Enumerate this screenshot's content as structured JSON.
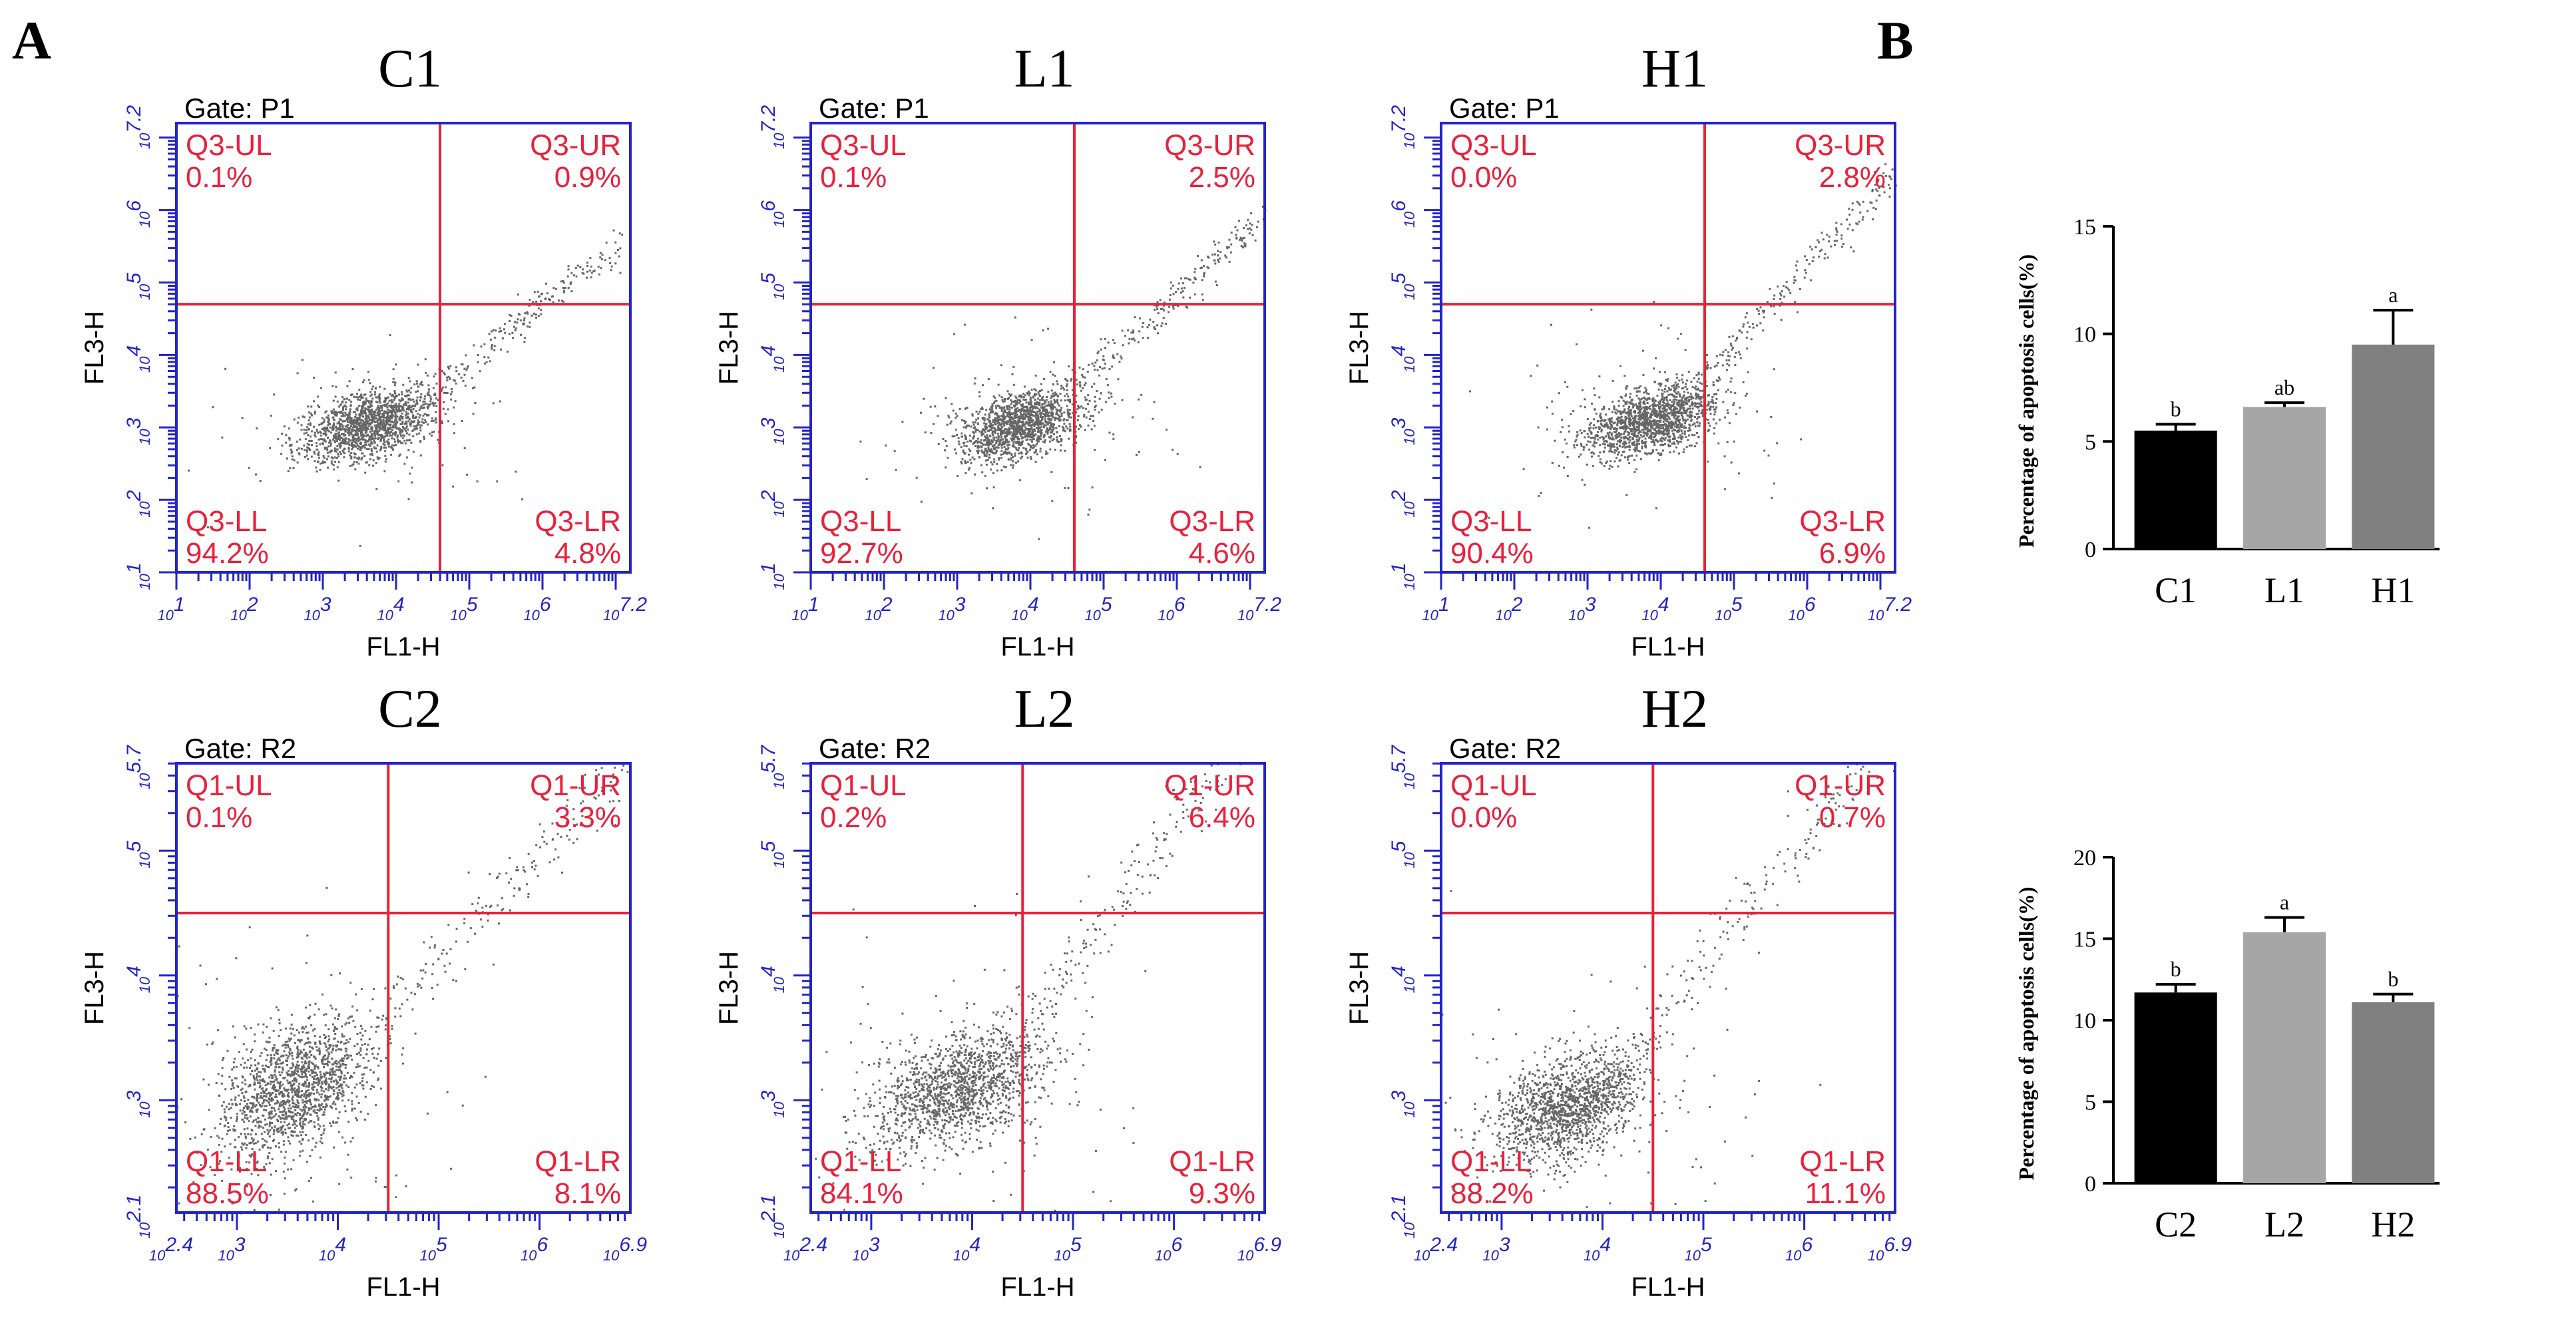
{
  "panel_labels": [
    "A",
    "B"
  ],
  "colors": {
    "axis_blue": "#2323c8",
    "gate_red": "#e8213c",
    "dot": "#333333",
    "bar_black": "#000000",
    "bar_light": "#a6a6a6",
    "bar_dark": "#808080"
  },
  "chart_data": [
    {
      "type": "scatter",
      "title": "C1",
      "gate": "Gate: P1",
      "xlabel": "FL1-H",
      "ylabel": "FL3-H",
      "x_ticks": [
        "1",
        "2",
        "3",
        "4",
        "5",
        "6",
        "7.2"
      ],
      "y_ticks": [
        "1",
        "2",
        "3",
        "4",
        "5",
        "6",
        "7.2"
      ],
      "xlim": [
        1,
        7.2
      ],
      "ylim": [
        1,
        7.2
      ],
      "gate_x": 4.6,
      "gate_y": 4.7,
      "quadrants": [
        {
          "name": "Q3-UL",
          "value": "0.1%"
        },
        {
          "name": "Q3-UR",
          "value": "0.9%"
        },
        {
          "name": "Q3-LL",
          "value": "94.2%"
        },
        {
          "name": "Q3-LR",
          "value": "4.8%"
        }
      ],
      "cluster": {
        "cx": 3.6,
        "cy": 3.05,
        "sx": 0.45,
        "sy": 0.22,
        "tail": 0.18
      }
    },
    {
      "type": "scatter",
      "title": "L1",
      "gate": "Gate: P1",
      "xlabel": "FL1-H",
      "ylabel": "FL3-H",
      "x_ticks": [
        "1",
        "2",
        "3",
        "4",
        "5",
        "6",
        "7.2"
      ],
      "y_ticks": [
        "1",
        "2",
        "3",
        "4",
        "5",
        "6",
        "7.2"
      ],
      "xlim": [
        1,
        7.2
      ],
      "ylim": [
        1,
        7.2
      ],
      "gate_x": 4.6,
      "gate_y": 4.7,
      "quadrants": [
        {
          "name": "Q3-UL",
          "value": "0.1%"
        },
        {
          "name": "Q3-UR",
          "value": "2.5%"
        },
        {
          "name": "Q3-LL",
          "value": "92.7%"
        },
        {
          "name": "Q3-LR",
          "value": "4.6%"
        }
      ],
      "cluster": {
        "cx": 3.85,
        "cy": 3.05,
        "sx": 0.42,
        "sy": 0.22,
        "tail": 0.22
      }
    },
    {
      "type": "scatter",
      "title": "H1",
      "gate": "Gate: P1",
      "xlabel": "FL1-H",
      "ylabel": "FL3-H",
      "x_ticks": [
        "1",
        "2",
        "3",
        "4",
        "5",
        "6",
        "7.2"
      ],
      "y_ticks": [
        "1",
        "2",
        "3",
        "4",
        "5",
        "6",
        "7.2"
      ],
      "xlim": [
        1,
        7.2
      ],
      "ylim": [
        1,
        7.2
      ],
      "gate_x": 4.6,
      "gate_y": 4.7,
      "quadrants": [
        {
          "name": "Q3-UL",
          "value": "0.0%"
        },
        {
          "name": "Q3-UR",
          "value": "2.8%"
        },
        {
          "name": "Q3-LL",
          "value": "90.4%"
        },
        {
          "name": "Q3-LR",
          "value": "6.9%"
        }
      ],
      "cluster": {
        "cx": 3.85,
        "cy": 3.1,
        "sx": 0.45,
        "sy": 0.22,
        "tail": 0.26
      }
    },
    {
      "type": "scatter",
      "title": "C2",
      "gate": "Gate: R2",
      "xlabel": "FL1-H",
      "ylabel": "FL3-H",
      "x_ticks": [
        "2.4",
        "3",
        "4",
        "5",
        "6",
        "6.9"
      ],
      "y_ticks": [
        "2.1",
        "3",
        "4",
        "5",
        "5.7"
      ],
      "xlim": [
        2.4,
        6.9
      ],
      "ylim": [
        2.1,
        5.7
      ],
      "gate_x": 4.5,
      "gate_y": 4.5,
      "quadrants": [
        {
          "name": "Q1-UL",
          "value": "0.1%"
        },
        {
          "name": "Q1-UR",
          "value": "3.3%"
        },
        {
          "name": "Q1-LL",
          "value": "88.5%"
        },
        {
          "name": "Q1-LR",
          "value": "8.1%"
        }
      ],
      "cluster": {
        "cx": 3.55,
        "cy": 3.1,
        "sx": 0.35,
        "sy": 0.25,
        "tail": 0.2
      }
    },
    {
      "type": "scatter",
      "title": "L2",
      "gate": "Gate: R2",
      "xlabel": "FL1-H",
      "ylabel": "FL3-H",
      "x_ticks": [
        "2.4",
        "3",
        "4",
        "5",
        "6",
        "6.9"
      ],
      "y_ticks": [
        "2.1",
        "3",
        "4",
        "5",
        "5.7"
      ],
      "xlim": [
        2.4,
        6.9
      ],
      "ylim": [
        2.1,
        5.7
      ],
      "gate_x": 4.5,
      "gate_y": 4.5,
      "quadrants": [
        {
          "name": "Q1-UL",
          "value": "0.2%"
        },
        {
          "name": "Q1-UR",
          "value": "6.4%"
        },
        {
          "name": "Q1-LL",
          "value": "84.1%"
        },
        {
          "name": "Q1-LR",
          "value": "9.3%"
        }
      ],
      "cluster": {
        "cx": 3.85,
        "cy": 3.1,
        "sx": 0.42,
        "sy": 0.22,
        "tail": 0.26
      }
    },
    {
      "type": "scatter",
      "title": "H2",
      "gate": "Gate: R2",
      "xlabel": "FL1-H",
      "ylabel": "FL3-H",
      "x_ticks": [
        "2.4",
        "3",
        "4",
        "5",
        "6",
        "6.9"
      ],
      "y_ticks": [
        "2.1",
        "3",
        "4",
        "5",
        "5.7"
      ],
      "xlim": [
        2.4,
        6.9
      ],
      "ylim": [
        2.1,
        5.7
      ],
      "gate_x": 4.5,
      "gate_y": 4.5,
      "quadrants": [
        {
          "name": "Q1-UL",
          "value": "0.0%"
        },
        {
          "name": "Q1-UR",
          "value": "0.7%"
        },
        {
          "name": "Q1-LL",
          "value": "88.2%"
        },
        {
          "name": "Q1-LR",
          "value": "11.1%"
        }
      ],
      "cluster": {
        "cx": 3.65,
        "cy": 2.95,
        "sx": 0.35,
        "sy": 0.2,
        "tail": 0.24
      }
    },
    {
      "type": "bar",
      "categories": [
        "C1",
        "L1",
        "H1"
      ],
      "values": [
        5.5,
        6.6,
        9.5
      ],
      "errors": [
        0.3,
        0.2,
        1.6
      ],
      "letters": [
        "b",
        "ab",
        "a"
      ],
      "ylabel": "Percentage of apoptosis cells(%)",
      "ylim": [
        0,
        15
      ],
      "y_ticks": [
        0,
        5,
        10,
        15
      ]
    },
    {
      "type": "bar",
      "categories": [
        "C2",
        "L2",
        "H2"
      ],
      "values": [
        11.7,
        15.4,
        11.1
      ],
      "errors": [
        0.5,
        0.9,
        0.5
      ],
      "letters": [
        "b",
        "a",
        "b"
      ],
      "ylabel": "Percentage of apoptosis cells(%)",
      "ylim": [
        0,
        20
      ],
      "y_ticks": [
        0,
        5,
        10,
        15,
        20
      ]
    }
  ]
}
